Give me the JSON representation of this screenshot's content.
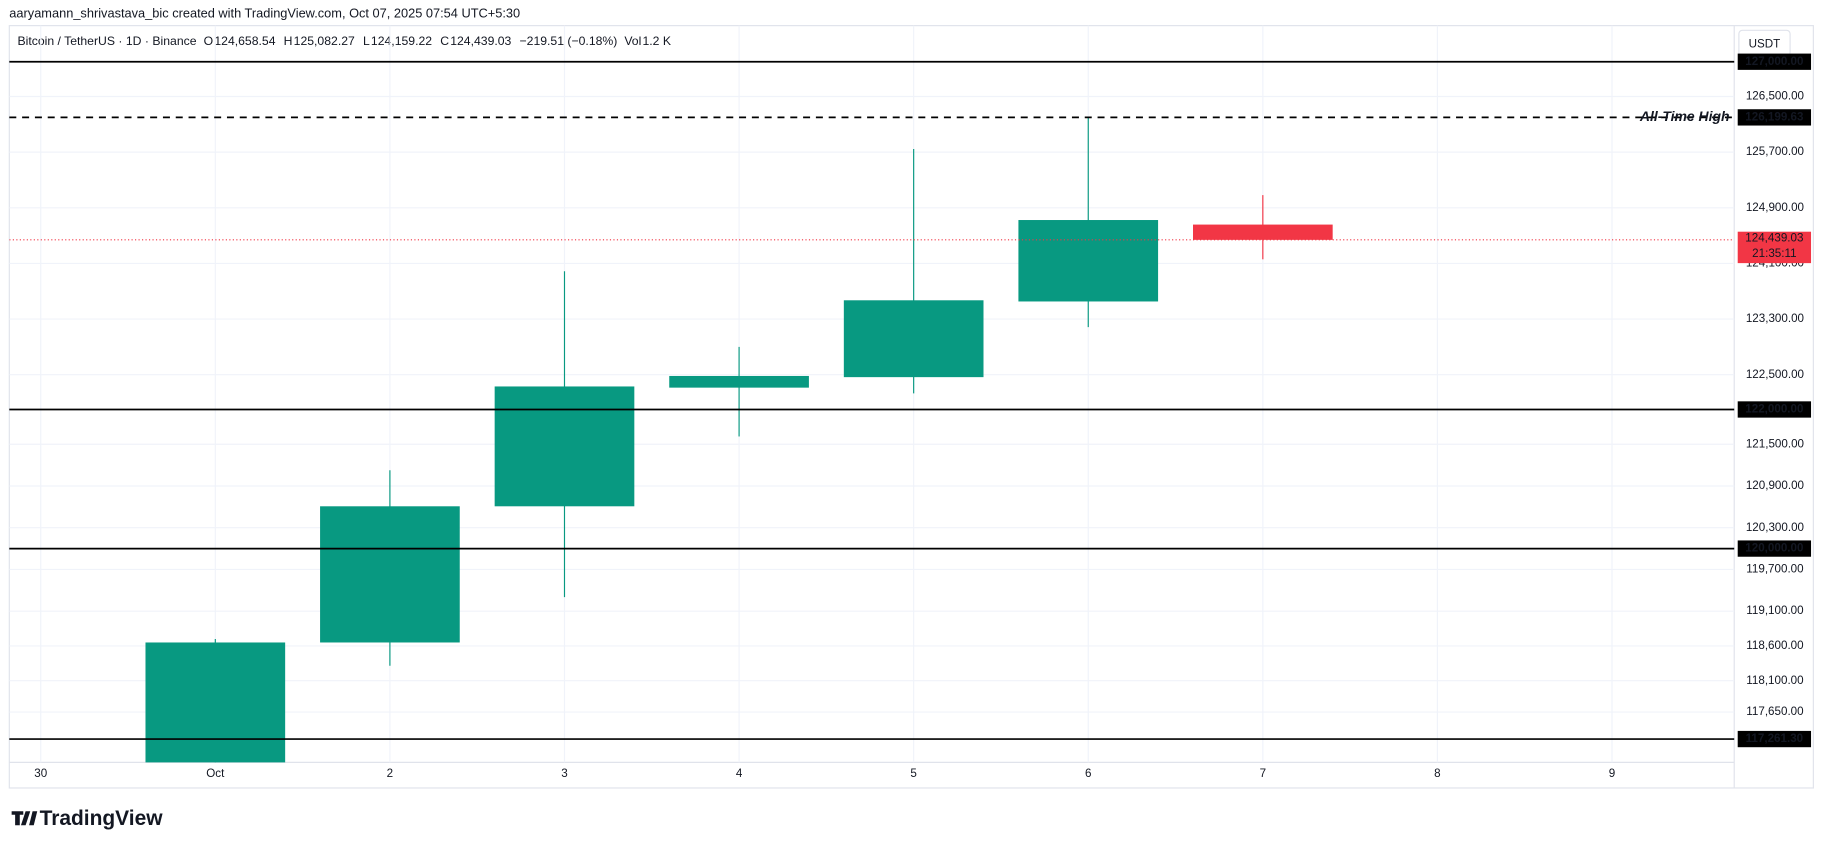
{
  "chart_data": {
    "type": "candlestick",
    "attribution": "aaryamann_shrivastava_bic created with TradingView.com, Oct 07, 2025 07:54 UTC+5:30",
    "title": "Bitcoin / TetherUS · 1D · Binance",
    "ohlc_legend": [
      {
        "key": "O",
        "text": "124,658.54"
      },
      {
        "key": "H",
        "text": "125,082.27"
      },
      {
        "key": "L",
        "text": "124,159.22"
      },
      {
        "key": "C",
        "text": "124,439.03"
      }
    ],
    "change": "−219.51 (−0.18%)",
    "volume_key": "Vol",
    "volume": "1.2 K",
    "currency": "USDT",
    "logo": "TradingView",
    "categories": [
      "30",
      "Oct",
      "2",
      "3",
      "4",
      "5",
      "6",
      "7",
      "8",
      "9"
    ],
    "open": [
      null,
      116800,
      118650,
      120608,
      122314,
      122465,
      123553,
      124658.54,
      null,
      null
    ],
    "high": [
      null,
      118700,
      121127,
      123988,
      122900,
      125745,
      126199.63,
      125082.27,
      null,
      null
    ],
    "low": [
      null,
      116500,
      118315,
      119302,
      121612,
      122231,
      123185,
      124159.22,
      null,
      null
    ],
    "close": [
      null,
      118650,
      120608,
      122331,
      122482,
      123570,
      124724,
      124439.03,
      null,
      null
    ],
    "up_color": "#089981",
    "down_color": "#f23645",
    "ylim": [
      116926,
      127519
    ],
    "yticks": [
      {
        "value": 126500,
        "label": "126,500.00"
      },
      {
        "value": 125700,
        "label": "125,700.00"
      },
      {
        "value": 124900,
        "label": "124,900.00"
      },
      {
        "value": 124100,
        "label": "124,100.00"
      },
      {
        "value": 123300,
        "label": "123,300.00"
      },
      {
        "value": 122500,
        "label": "122,500.00"
      },
      {
        "value": 121500,
        "label": "121,500.00"
      },
      {
        "value": 120900,
        "label": "120,900.00"
      },
      {
        "value": 120300,
        "label": "120,300.00"
      },
      {
        "value": 119700,
        "label": "119,700.00"
      },
      {
        "value": 119100,
        "label": "119,100.00"
      },
      {
        "value": 118600,
        "label": "118,600.00"
      },
      {
        "value": 118100,
        "label": "118,100.00"
      },
      {
        "value": 117650,
        "label": "117,650.00"
      }
    ],
    "levels": [
      {
        "value": 127000,
        "label": "127,000.00"
      },
      {
        "value": 126199.63,
        "label": "126,199.63",
        "dashed": true,
        "annotation": "All-Time High"
      },
      {
        "value": 122000,
        "label": "122,000.00"
      },
      {
        "value": 120000,
        "label": "120,000.00"
      },
      {
        "value": 117261.3,
        "label": "117,261.30"
      }
    ],
    "last_price_label": "124,439.03",
    "countdown": "21:35:11",
    "grid": true
  }
}
